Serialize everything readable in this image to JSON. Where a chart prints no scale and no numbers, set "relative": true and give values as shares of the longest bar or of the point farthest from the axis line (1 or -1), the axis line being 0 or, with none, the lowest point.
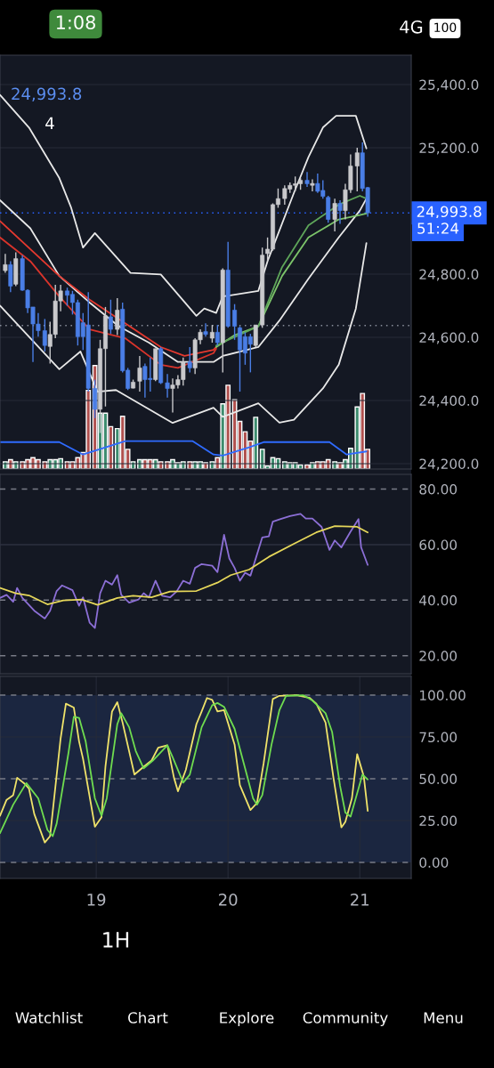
{
  "chart_data": [
    {
      "type": "candlestick",
      "xlim": [
        18.27,
        21.39
      ],
      "ylim": [
        24183,
        25493
      ],
      "yticks": [
        {
          "value": 24200,
          "label": "24,200.0"
        },
        {
          "value": 24400,
          "label": "24,400.0"
        },
        {
          "value": 24600,
          "label": "24,600.0"
        },
        {
          "value": 24800,
          "label": "24,800.0"
        },
        {
          "value": 25200,
          "label": "25,200.0"
        },
        {
          "value": 25400,
          "label": "25,400.0"
        }
      ],
      "x": [
        18.31,
        18.35,
        18.39,
        18.44,
        18.48,
        18.52,
        18.56,
        18.61,
        18.65,
        18.69,
        18.73,
        18.78,
        18.82,
        18.86,
        18.9,
        18.94,
        18.99,
        19.03,
        19.07,
        19.11,
        19.16,
        19.2,
        19.24,
        19.28,
        19.33,
        19.37,
        19.41,
        19.45,
        19.49,
        19.54,
        19.58,
        19.62,
        19.66,
        19.71,
        19.75,
        19.79,
        19.83,
        19.88,
        19.92,
        19.96,
        20.0,
        20.05,
        20.09,
        20.13,
        20.17,
        20.21,
        20.26,
        20.3,
        20.34,
        20.38,
        20.43,
        20.47,
        20.51,
        20.55,
        20.6,
        20.64,
        20.68,
        20.72,
        20.76,
        20.81,
        20.85,
        20.89,
        20.93,
        20.98,
        21.02,
        21.06
      ],
      "ohlc": [
        [
          24811,
          24864,
          24804,
          24830
        ],
        [
          24830,
          24841,
          24743,
          24762
        ],
        [
          24768,
          24869,
          24762,
          24849
        ],
        [
          24849,
          24860,
          24747,
          24749
        ],
        [
          24749,
          24752,
          24677,
          24693
        ],
        [
          24696,
          24696,
          24522,
          24642
        ],
        [
          24642,
          24677,
          24602,
          24621
        ],
        [
          24621,
          24658,
          24555,
          24574
        ],
        [
          24571,
          24649,
          24517,
          24609
        ],
        [
          24609,
          24766,
          24597,
          24715
        ],
        [
          24715,
          24766,
          24682,
          24747
        ],
        [
          24747,
          24757,
          24700,
          24733
        ],
        [
          24736,
          24747,
          24672,
          24710
        ],
        [
          24710,
          24719,
          24574,
          24602
        ],
        [
          24646,
          24677,
          24560,
          24602
        ],
        [
          24639,
          24743,
          24428,
          24438
        ],
        [
          24438,
          24466,
          24344,
          24372
        ],
        [
          24372,
          24592,
          24297,
          24564
        ],
        [
          24564,
          24696,
          24381,
          24668
        ],
        [
          24665,
          24719,
          24611,
          24625
        ],
        [
          24625,
          24724,
          24607,
          24686
        ],
        [
          24689,
          24710,
          24489,
          24494
        ],
        [
          24496,
          24503,
          24433,
          24438
        ],
        [
          24439,
          24466,
          24438,
          24458
        ],
        [
          24461,
          24541,
          24428,
          24503
        ],
        [
          24508,
          24517,
          24409,
          24466
        ],
        [
          24470,
          24536,
          24428,
          24466
        ],
        [
          24466,
          24564,
          24461,
          24564
        ],
        [
          24564,
          24569,
          24452,
          24456
        ],
        [
          24456,
          24484,
          24409,
          24438
        ],
        [
          24438,
          24470,
          24362,
          24449
        ],
        [
          24449,
          24480,
          24438,
          24466
        ],
        [
          24466,
          24536,
          24447,
          24522
        ],
        [
          24522,
          24569,
          24489,
          24503
        ],
        [
          24503,
          24597,
          24484,
          24592
        ],
        [
          24592,
          24625,
          24578,
          24616
        ],
        [
          24618,
          24644,
          24602,
          24609
        ],
        [
          24597,
          24639,
          24583,
          24616
        ],
        [
          24616,
          24639,
          24574,
          24583
        ],
        [
          24583,
          24818,
          24489,
          24813
        ],
        [
          24813,
          24902,
          24630,
          24635
        ],
        [
          24686,
          24705,
          24592,
          24635
        ],
        [
          24630,
          24635,
          24428,
          24560
        ],
        [
          24602,
          24616,
          24513,
          24550
        ],
        [
          24602,
          24611,
          24489,
          24578
        ],
        [
          24574,
          24639,
          24569,
          24639
        ],
        [
          24639,
          24884,
          24630,
          24860
        ],
        [
          24865,
          24916,
          24841,
          24879
        ],
        [
          24879,
          25024,
          24874,
          25020
        ],
        [
          25020,
          25071,
          25010,
          25039
        ],
        [
          25039,
          25081,
          25020,
          25071
        ],
        [
          25069,
          25090,
          25057,
          25081
        ],
        [
          25081,
          25109,
          25062,
          25086
        ],
        [
          25086,
          25104,
          25067,
          25097
        ],
        [
          25097,
          25123,
          25076,
          25086
        ],
        [
          25081,
          25100,
          25062,
          25087
        ],
        [
          25087,
          25118,
          25057,
          25062
        ],
        [
          25065,
          25097,
          25039,
          25046
        ],
        [
          25043,
          25048,
          24963,
          24973
        ],
        [
          24973,
          25039,
          24935,
          25024
        ],
        [
          25024,
          25034,
          24959,
          25001
        ],
        [
          25001,
          25086,
          24973,
          25067
        ],
        [
          25067,
          25179,
          25057,
          25142
        ],
        [
          25142,
          25200,
          25062,
          25184
        ],
        [
          25184,
          25217,
          25062,
          25071
        ],
        [
          25074,
          25076,
          24982,
          24994
        ]
      ],
      "series": [
        {
          "type": "line",
          "color": "#e8e8e8",
          "x": [
            18.27,
            18.49,
            18.72,
            18.81,
            18.9,
            18.99,
            19.26,
            19.49,
            19.76,
            19.82,
            19.91,
            19.96,
            20.23,
            20.3,
            20.5,
            20.61,
            20.72,
            20.82,
            20.97,
            21.05
          ],
          "values": [
            25367,
            25264,
            25104,
            25010,
            24884,
            24930,
            24804,
            24799,
            24668,
            24691,
            24677,
            24729,
            24747,
            24841,
            25057,
            25170,
            25264,
            25301,
            25301,
            25198
          ]
        },
        {
          "type": "line",
          "color": "#e8e8e8",
          "x": [
            18.27,
            18.5,
            18.72,
            18.95,
            19.17,
            19.4,
            19.62,
            19.89,
            19.96,
            20.23,
            20.39,
            20.61,
            20.84,
            21.0,
            21.05
          ],
          "values": [
            25034,
            24945,
            24794,
            24710,
            24635,
            24583,
            24522,
            24522,
            24541,
            24569,
            24653,
            24785,
            24916,
            25001,
            25039
          ]
        },
        {
          "type": "line",
          "color": "#e8e8e8",
          "x": [
            18.27,
            18.72,
            18.88,
            19.01,
            19.15,
            19.58,
            19.89,
            19.96,
            20.23,
            20.39,
            20.5,
            20.72,
            20.84,
            20.97,
            21.05
          ],
          "values": [
            24700,
            24499,
            24555,
            24428,
            24433,
            24329,
            24377,
            24348,
            24391,
            24330,
            24339,
            24438,
            24513,
            24691,
            24898
          ]
        },
        {
          "type": "line",
          "color": "#e5392f",
          "x": [
            18.27,
            18.72,
            18.95,
            19.22,
            19.49,
            19.67,
            19.89,
            19.91
          ],
          "values": [
            24968,
            24794,
            24719,
            24644,
            24569,
            24541,
            24560,
            24569
          ]
        },
        {
          "type": "line",
          "color": "#d9342b",
          "x": [
            18.27,
            18.5,
            18.72,
            18.95,
            19.22,
            19.49,
            19.62,
            19.89,
            19.91
          ],
          "values": [
            24916,
            24841,
            24729,
            24625,
            24597,
            24513,
            24503,
            24550,
            24564
          ]
        },
        {
          "type": "line",
          "color": "#7cc46a",
          "x": [
            19.91,
            20.05,
            20.23,
            20.41,
            20.61,
            20.84,
            21.0,
            21.05
          ],
          "values": [
            24569,
            24607,
            24635,
            24794,
            24916,
            24973,
            24987,
            24992
          ]
        },
        {
          "type": "line",
          "color": "#5ea55a",
          "x": [
            19.91,
            20.23,
            20.41,
            20.61,
            20.84,
            21.0,
            21.05
          ],
          "values": [
            24574,
            24635,
            24822,
            24954,
            25020,
            25048,
            25039
          ]
        }
      ],
      "ref_lines": [
        {
          "axis": "y",
          "value": 24993.8,
          "label": "24,993.8",
          "color": "#2962ff",
          "line_style": "dotted"
        },
        {
          "axis": "y",
          "value": 24637,
          "color": "#8a8f9c",
          "line_style": "dotted"
        }
      ],
      "grid": true,
      "tick_labels": "y",
      "annotations": [
        "1:08",
        "4G",
        "100",
        "24,993.8",
        "4",
        "51:24",
        "1H",
        "Watchlist",
        "Chart",
        "Explore",
        "Community",
        "Menu"
      ]
    },
    {
      "type": "bar",
      "relative": true,
      "xlim": [
        18.27,
        21.39
      ],
      "tick_labels": false,
      "x": [
        18.31,
        18.35,
        18.39,
        18.44,
        18.48,
        18.52,
        18.56,
        18.61,
        18.65,
        18.69,
        18.73,
        18.78,
        18.82,
        18.86,
        18.9,
        18.94,
        18.99,
        19.03,
        19.07,
        19.11,
        19.16,
        19.2,
        19.24,
        19.28,
        19.33,
        19.37,
        19.41,
        19.45,
        19.49,
        19.54,
        19.58,
        19.62,
        19.66,
        19.71,
        19.75,
        19.79,
        19.83,
        19.88,
        19.92,
        19.96,
        20.0,
        20.05,
        20.09,
        20.13,
        20.17,
        20.21,
        20.26,
        20.3,
        20.34,
        20.38,
        20.43,
        20.47,
        20.51,
        20.55,
        20.6,
        20.64,
        20.68,
        20.72,
        20.76,
        20.81,
        20.85,
        20.89,
        20.93,
        20.98,
        21.02,
        21.06
      ],
      "values": [
        0.07,
        0.09,
        0.07,
        0.07,
        0.09,
        0.11,
        0.09,
        0.07,
        0.09,
        0.09,
        0.1,
        0.07,
        0.07,
        0.11,
        0.16,
        0.76,
        1,
        0.54,
        0.54,
        0.41,
        0.39,
        0.51,
        0.19,
        0.07,
        0.09,
        0.09,
        0.09,
        0.09,
        0.07,
        0.07,
        0.09,
        0.06,
        0.07,
        0.07,
        0.07,
        0.07,
        0.06,
        0.07,
        0.11,
        0.63,
        0.81,
        0.67,
        0.46,
        0.36,
        0.27,
        0.5,
        0.19,
        0.03,
        0.11,
        0.1,
        0.07,
        0.06,
        0.06,
        0.04,
        0.04,
        0.06,
        0.07,
        0.07,
        0.09,
        0.07,
        0.06,
        0.09,
        0.2,
        0.6,
        0.73,
        0.19
      ],
      "colors": [
        "#3d8c6e",
        "#b0504e",
        "#3d8c6e",
        "#b0504e",
        "#b0504e",
        "#b0504e",
        "#b0504e",
        "#b0504e",
        "#3d8c6e",
        "#3d8c6e",
        "#3d8c6e",
        "#b0504e",
        "#b0504e",
        "#b0504e",
        "#b0504e",
        "#b0504e",
        "#b0504e",
        "#3d8c6e",
        "#3d8c6e",
        "#b0504e",
        "#3d8c6e",
        "#b0504e",
        "#b0504e",
        "#3d8c6e",
        "#3d8c6e",
        "#b0504e",
        "#b0504e",
        "#3d8c6e",
        "#b0504e",
        "#b0504e",
        "#3d8c6e",
        "#3d8c6e",
        "#3d8c6e",
        "#b0504e",
        "#3d8c6e",
        "#3d8c6e",
        "#b0504e",
        "#3d8c6e",
        "#b0504e",
        "#3d8c6e",
        "#b0504e",
        "#b0504e",
        "#b0504e",
        "#b0504e",
        "#b0504e",
        "#3d8c6e",
        "#3d8c6e",
        "#3d8c6e",
        "#3d8c6e",
        "#3d8c6e",
        "#3d8c6e",
        "#3d8c6e",
        "#3d8c6e",
        "#3d8c6e",
        "#b0504e",
        "#3d8c6e",
        "#b0504e",
        "#b0504e",
        "#b0504e",
        "#3d8c6e",
        "#b0504e",
        "#3d8c6e",
        "#3d8c6e",
        "#3d8c6e",
        "#b0504e",
        "#b0504e"
      ],
      "series": [
        {
          "type": "line",
          "color": "#2f6bff",
          "x": [
            18.27,
            18.72,
            18.9,
            19.22,
            19.73,
            19.89,
            19.96,
            20.16,
            20.27,
            20.77,
            20.9,
            21.05
          ],
          "values": [
            0.26,
            0.26,
            0.14,
            0.27,
            0.27,
            0.14,
            0.13,
            0.21,
            0.26,
            0.26,
            0.14,
            0.17
          ]
        }
      ]
    },
    {
      "type": "line",
      "xlim": [
        18.27,
        21.39
      ],
      "ylim": [
        13.5,
        85.3
      ],
      "yticks": [
        {
          "value": 20,
          "label": "20.00"
        },
        {
          "value": 40,
          "label": "40.00"
        },
        {
          "value": 60,
          "label": "60.00"
        },
        {
          "value": 80,
          "label": "80.00"
        }
      ],
      "series": [
        {
          "type": "line",
          "color": "#8c6fd6",
          "x": [
            18.27,
            18.32,
            18.37,
            18.4,
            18.44,
            18.53,
            18.61,
            18.65,
            18.7,
            18.74,
            18.82,
            18.87,
            18.9,
            18.95,
            18.99,
            19.03,
            19.07,
            19.12,
            19.16,
            19.19,
            19.25,
            19.32,
            19.36,
            19.4,
            19.45,
            19.5,
            19.56,
            19.61,
            19.66,
            19.71,
            19.75,
            19.8,
            19.88,
            19.92,
            19.97,
            20.01,
            20.05,
            20.09,
            20.13,
            20.17,
            20.26,
            20.31,
            20.34,
            20.4,
            20.47,
            20.55,
            20.59,
            20.64,
            20.71,
            20.77,
            20.81,
            20.86,
            20.93,
            20.99,
            21.01,
            21.06
          ],
          "values": [
            40.8,
            41.9,
            39.4,
            44.4,
            40.8,
            36.2,
            33.4,
            36.2,
            43.3,
            45.3,
            43.6,
            38.0,
            41.0,
            31.9,
            30.0,
            42.5,
            47.0,
            45.6,
            49.0,
            41.9,
            39.1,
            40.2,
            42.5,
            41.0,
            47.0,
            41.6,
            41.0,
            43.1,
            47.0,
            45.9,
            51.6,
            53.0,
            52.4,
            50.1,
            63.5,
            55.0,
            51.6,
            47.0,
            49.9,
            48.8,
            62.6,
            63.0,
            68.3,
            69.2,
            70.3,
            71.1,
            69.4,
            69.4,
            66.4,
            58.1,
            61.5,
            59.0,
            64.7,
            69.2,
            59.0,
            52.7
          ]
        },
        {
          "type": "line",
          "color": "#e6d75a",
          "x": [
            18.27,
            18.39,
            18.49,
            18.63,
            18.75,
            18.89,
            19.01,
            19.16,
            19.28,
            19.42,
            19.56,
            19.76,
            19.92,
            20.02,
            20.16,
            20.31,
            20.5,
            20.67,
            20.81,
            20.98,
            21.06
          ],
          "values": [
            44.4,
            42.5,
            41.7,
            38.5,
            39.9,
            40.2,
            38.3,
            40.8,
            41.6,
            41.0,
            43.1,
            43.3,
            46.3,
            49.0,
            51.0,
            55.6,
            60.3,
            64.4,
            66.7,
            66.4,
            64.4
          ]
        }
      ],
      "ref_lines": [
        {
          "axis": "y",
          "value": 80,
          "color": "#787b86",
          "line_style": "dashed"
        },
        {
          "axis": "y",
          "value": 60,
          "color": "#2c3140",
          "line_style": "solid"
        },
        {
          "axis": "y",
          "value": 40,
          "color": "#787b86",
          "line_style": "dashed"
        },
        {
          "axis": "y",
          "value": 20,
          "color": "#787b86",
          "line_style": "dashed"
        }
      ],
      "grid": "x",
      "tick_labels": "y"
    },
    {
      "type": "line",
      "xlim": [
        18.27,
        21.39
      ],
      "ylim": [
        -9.6,
        111.2
      ],
      "xticks": [
        19,
        20,
        21
      ],
      "yticks": [
        {
          "value": 0,
          "label": "0.00"
        },
        {
          "value": 25,
          "label": "25.00"
        },
        {
          "value": 50,
          "label": "50.00"
        },
        {
          "value": 75,
          "label": "75.00"
        },
        {
          "value": 100,
          "label": "100.00"
        }
      ],
      "series": [
        {
          "type": "line",
          "color": "#f0e36a",
          "x": [
            18.27,
            18.32,
            18.37,
            18.4,
            18.46,
            18.49,
            18.53,
            18.61,
            18.65,
            18.73,
            18.77,
            18.83,
            18.87,
            18.9,
            18.99,
            19.04,
            19.07,
            19.12,
            19.16,
            19.2,
            19.29,
            19.36,
            19.42,
            19.47,
            19.54,
            19.59,
            19.62,
            19.68,
            19.76,
            19.8,
            19.84,
            19.88,
            19.92,
            19.97,
            20.05,
            20.09,
            20.17,
            20.22,
            20.27,
            20.34,
            20.39,
            20.52,
            20.62,
            20.67,
            20.74,
            20.8,
            20.86,
            20.89,
            20.94,
            20.98,
            21.03,
            21.06
          ],
          "values": [
            27.9,
            37.4,
            40.2,
            50.6,
            46.8,
            44.0,
            28.9,
            11.9,
            15.7,
            74.2,
            94.9,
            92.6,
            72.3,
            61.9,
            21.3,
            27.0,
            57.2,
            90.2,
            95.8,
            83.6,
            52.5,
            57.2,
            60.9,
            68.5,
            70.0,
            50.6,
            42.5,
            55.3,
            82.6,
            90.2,
            98.3,
            97.2,
            90.2,
            91.1,
            70.4,
            46.2,
            31.3,
            35.5,
            59.1,
            97.7,
            99.6,
            100,
            98.3,
            94.9,
            83.6,
            50.6,
            20.9,
            24.2,
            38.3,
            64.7,
            51.5,
            30.8
          ]
        },
        {
          "type": "line",
          "color": "#6fdc4f",
          "x": [
            18.27,
            18.37,
            18.47,
            18.56,
            18.63,
            18.67,
            18.7,
            18.79,
            18.83,
            18.87,
            18.92,
            18.99,
            19.04,
            19.08,
            19.16,
            19.19,
            19.25,
            19.3,
            19.36,
            19.43,
            19.54,
            19.58,
            19.66,
            19.71,
            19.8,
            19.88,
            19.92,
            19.97,
            20.05,
            20.12,
            20.19,
            20.22,
            20.26,
            20.33,
            20.39,
            20.44,
            20.57,
            20.64,
            20.74,
            20.79,
            20.85,
            20.89,
            20.93,
            21.02,
            21.06
          ],
          "values": [
            17.5,
            34.5,
            47.4,
            38.3,
            19.4,
            15.7,
            23.2,
            65.7,
            87.0,
            86.4,
            72.3,
            38.3,
            27.9,
            38.3,
            82.6,
            89.2,
            80.8,
            66.6,
            56.2,
            60.9,
            70.0,
            62.8,
            47.7,
            52.5,
            80.8,
            94.0,
            95.3,
            93.0,
            79.8,
            59.1,
            38.3,
            34.5,
            40.2,
            70.4,
            91.1,
            99.6,
            100,
            96.8,
            89.2,
            77.9,
            45.8,
            29.8,
            27.4,
            52.5,
            49.6
          ]
        }
      ],
      "ref_lines": [
        {
          "axis": "y",
          "value": 100,
          "color": "#787b86",
          "line_style": "dashed"
        },
        {
          "axis": "y",
          "value": 50,
          "color": "#787b86",
          "line_style": "dashed"
        },
        {
          "axis": "y",
          "value": 0,
          "color": "#787b86",
          "line_style": "dashed"
        }
      ],
      "bands": [
        {
          "axis": "y",
          "from": 0,
          "to": 100,
          "color": "#1b2640"
        }
      ],
      "grid": true
    }
  ]
}
